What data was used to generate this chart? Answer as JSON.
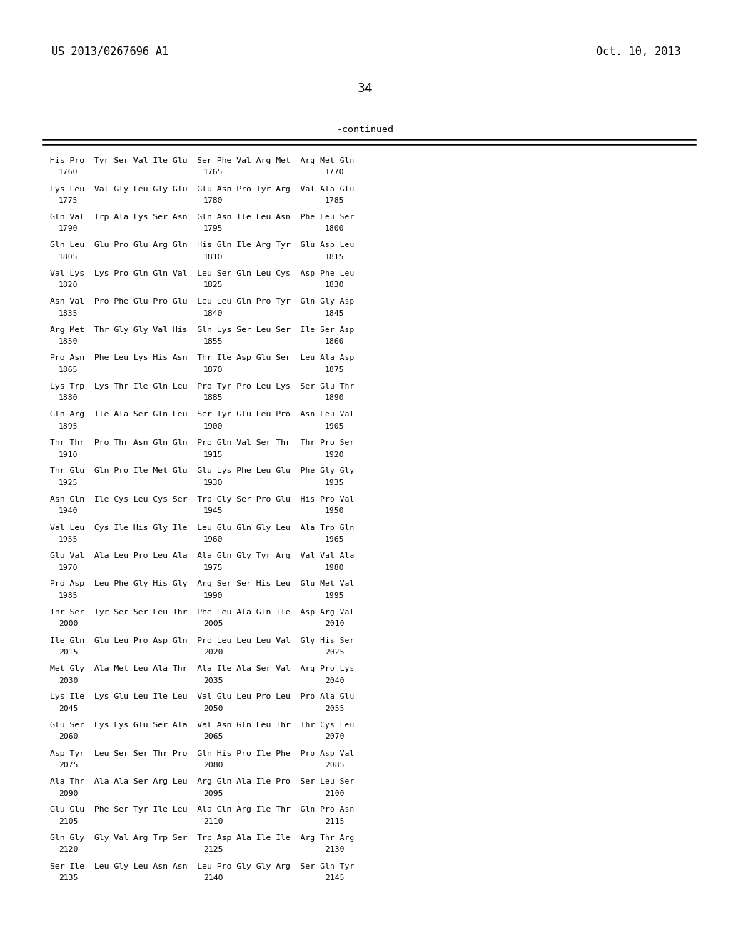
{
  "header_left": "US 2013/0267696 A1",
  "header_right": "Oct. 10, 2013",
  "page_number": "34",
  "continued_label": "-continued",
  "bg_color": "#ffffff",
  "text_color": "#000000",
  "line_color": "#000000",
  "sequence_data": [
    [
      "His Pro  Tyr Ser Val Ile Glu  Ser Phe Val Arg Met  Arg Met Gln",
      "1760",
      "1765",
      "1770"
    ],
    [
      "Lys Leu  Val Gly Leu Gly Glu  Glu Asn Pro Tyr Arg  Val Ala Glu",
      "1775",
      "1780",
      "1785"
    ],
    [
      "Gln Val  Trp Ala Lys Ser Asn  Gln Asn Ile Leu Asn  Phe Leu Ser",
      "1790",
      "1795",
      "1800"
    ],
    [
      "Gln Leu  Glu Pro Glu Arg Gln  His Gln Ile Arg Tyr  Glu Asp Leu",
      "1805",
      "1810",
      "1815"
    ],
    [
      "Val Lys  Lys Pro Gln Gln Val  Leu Ser Gln Leu Cys  Asp Phe Leu",
      "1820",
      "1825",
      "1830"
    ],
    [
      "Asn Val  Pro Phe Glu Pro Glu  Leu Leu Gln Pro Tyr  Gln Gly Asp",
      "1835",
      "1840",
      "1845"
    ],
    [
      "Arg Met  Thr Gly Gly Val His  Gln Lys Ser Leu Ser  Ile Ser Asp",
      "1850",
      "1855",
      "1860"
    ],
    [
      "Pro Asn  Phe Leu Lys His Asn  Thr Ile Asp Glu Ser  Leu Ala Asp",
      "1865",
      "1870",
      "1875"
    ],
    [
      "Lys Trp  Lys Thr Ile Gln Leu  Pro Tyr Pro Leu Lys  Ser Glu Thr",
      "1880",
      "1885",
      "1890"
    ],
    [
      "Gln Arg  Ile Ala Ser Gln Leu  Ser Tyr Glu Leu Pro  Asn Leu Val",
      "1895",
      "1900",
      "1905"
    ],
    [
      "Thr Thr  Pro Thr Asn Gln Gln  Pro Gln Val Ser Thr  Thr Pro Ser",
      "1910",
      "1915",
      "1920"
    ],
    [
      "Thr Glu  Gln Pro Ile Met Glu  Glu Lys Phe Leu Glu  Phe Gly Gly",
      "1925",
      "1930",
      "1935"
    ],
    [
      "Asn Gln  Ile Cys Leu Cys Ser  Trp Gly Ser Pro Glu  His Pro Val",
      "1940",
      "1945",
      "1950"
    ],
    [
      "Val Leu  Cys Ile His Gly Ile  Leu Glu Gln Gly Leu  Ala Trp Gln",
      "1955",
      "1960",
      "1965"
    ],
    [
      "Glu Val  Ala Leu Pro Leu Ala  Ala Gln Gly Tyr Arg  Val Val Ala",
      "1970",
      "1975",
      "1980"
    ],
    [
      "Pro Asp  Leu Phe Gly His Gly  Arg Ser Ser His Leu  Glu Met Val",
      "1985",
      "1990",
      "1995"
    ],
    [
      "Thr Ser  Tyr Ser Ser Leu Thr  Phe Leu Ala Gln Ile  Asp Arg Val",
      "2000",
      "2005",
      "2010"
    ],
    [
      "Ile Gln  Glu Leu Pro Asp Gln  Pro Leu Leu Leu Val  Gly His Ser",
      "2015",
      "2020",
      "2025"
    ],
    [
      "Met Gly  Ala Met Leu Ala Thr  Ala Ile Ala Ser Val  Arg Pro Lys",
      "2030",
      "2035",
      "2040"
    ],
    [
      "Lys Ile  Lys Glu Leu Ile Leu  Val Glu Leu Pro Leu  Pro Ala Glu",
      "2045",
      "2050",
      "2055"
    ],
    [
      "Glu Ser  Lys Lys Glu Ser Ala  Val Asn Gln Leu Thr  Thr Cys Leu",
      "2060",
      "2065",
      "2070"
    ],
    [
      "Asp Tyr  Leu Ser Ser Thr Pro  Gln His Pro Ile Phe  Pro Asp Val",
      "2075",
      "2080",
      "2085"
    ],
    [
      "Ala Thr  Ala Ala Ser Arg Leu  Arg Gln Ala Ile Pro  Ser Leu Ser",
      "2090",
      "2095",
      "2100"
    ],
    [
      "Glu Glu  Phe Ser Tyr Ile Leu  Ala Gln Arg Ile Thr  Gln Pro Asn",
      "2105",
      "2110",
      "2115"
    ],
    [
      "Gln Gly  Gly Val Arg Trp Ser  Trp Asp Ala Ile Ile  Arg Thr Arg",
      "2120",
      "2125",
      "2130"
    ],
    [
      "Ser Ile  Leu Gly Leu Asn Asn  Leu Pro Gly Gly Arg  Ser Gln Tyr",
      "2135",
      "2140",
      "2145"
    ]
  ]
}
